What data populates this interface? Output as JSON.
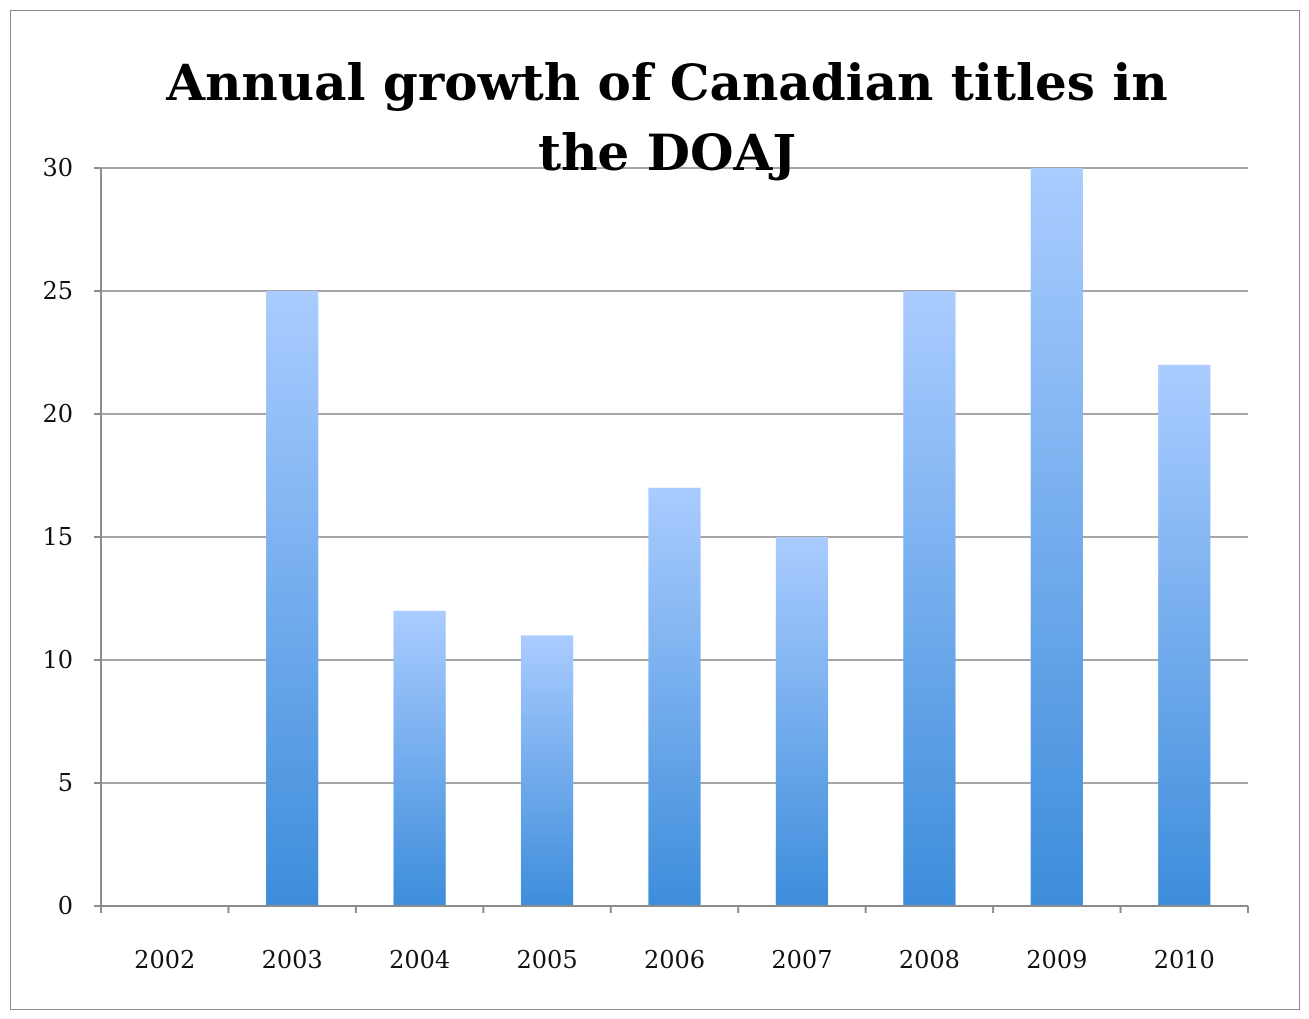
{
  "chart_data": {
    "type": "bar",
    "title": "Annual growth of Canadian titles in the DOAJ",
    "title_lines": [
      "Annual growth of Canadian titles in",
      "the DOAJ"
    ],
    "categories": [
      "2002",
      "2003",
      "2004",
      "2005",
      "2006",
      "2007",
      "2008",
      "2009",
      "2010"
    ],
    "values": [
      0,
      25,
      12,
      11,
      17,
      15,
      25,
      30,
      22
    ],
    "yticks": [
      "0",
      "5",
      "10",
      "15",
      "20",
      "25",
      "30"
    ],
    "ylim": [
      0,
      30
    ],
    "xlabel": "",
    "ylabel": "",
    "grid": true,
    "legend": "none",
    "colors": {
      "bar_top": "#aaccff",
      "bar_bottom": "#3d8ddb",
      "grid": "#a6a6a6",
      "axis": "#8c8c8c"
    }
  }
}
